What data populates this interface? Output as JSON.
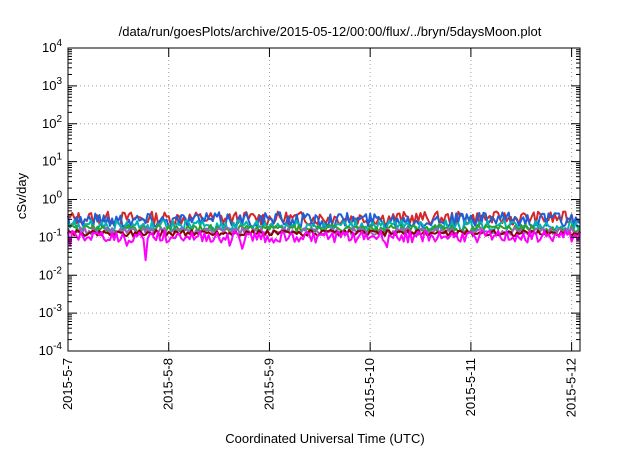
{
  "chart_data": {
    "type": "line",
    "title": "/data/run/goesPlots/archive/2015-05-12/00:00/flux/../bryn/5daysMoon.plot",
    "xlabel": "Coordinated Universal Time (UTC)",
    "ylabel": "cSv/day",
    "yscale": "log",
    "ylim": [
      0.0001,
      10000
    ],
    "xlim": [
      "2015-05-07",
      "2015-05-12 02:00"
    ],
    "grid": true,
    "x_ticks": [
      "2015-5-7",
      "2015-5-8",
      "2015-5-9",
      "2015-5-10",
      "2015-5-11",
      "2015-5-12"
    ],
    "y_ticks": [
      {
        "value": 0.0001,
        "base": "10",
        "exp": "-4"
      },
      {
        "value": 0.001,
        "base": "10",
        "exp": "-3"
      },
      {
        "value": 0.01,
        "base": "10",
        "exp": "-2"
      },
      {
        "value": 0.1,
        "base": "10",
        "exp": "-1"
      },
      {
        "value": 1,
        "base": "10",
        "exp": "0"
      },
      {
        "value": 10,
        "base": "10",
        "exp": "1"
      },
      {
        "value": 100,
        "base": "10",
        "exp": "2"
      },
      {
        "value": 1000,
        "base": "10",
        "exp": "3"
      },
      {
        "value": 10000,
        "base": "10",
        "exp": "4"
      }
    ],
    "series": [
      {
        "color": "#d62728",
        "level": 0.32,
        "jitter": 0.18,
        "dips": []
      },
      {
        "color": "#1f5fd6",
        "level": 0.29,
        "jitter": 0.2,
        "dips": []
      },
      {
        "color": "#00b3b3",
        "level": 0.2,
        "jitter": 0.15,
        "dips": []
      },
      {
        "color": "#2ca02c",
        "level": 0.17,
        "jitter": 0.1,
        "dips": []
      },
      {
        "color": "#9467bd",
        "level": 0.145,
        "jitter": 0.1,
        "dips": []
      },
      {
        "color": "#8b0000",
        "level": 0.13,
        "jitter": 0.08,
        "dips": []
      },
      {
        "color": "#ff00ff",
        "level": 0.105,
        "jitter": 0.16,
        "dips": [
          {
            "x": "2015-05-07 00:20",
            "y": 0.06
          },
          {
            "x": "2015-05-07 14:00",
            "y": 0.06
          },
          {
            "x": "2015-05-07 18:40",
            "y": 0.025
          },
          {
            "x": "2015-05-08 14:40",
            "y": 0.06
          },
          {
            "x": "2015-05-08 17:20",
            "y": 0.05
          },
          {
            "x": "2015-05-10 04:00",
            "y": 0.055
          }
        ]
      }
    ]
  }
}
